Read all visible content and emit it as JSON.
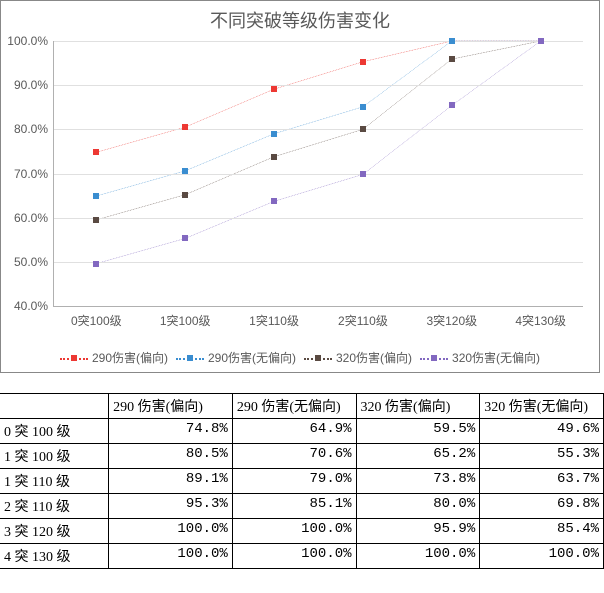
{
  "chart": {
    "type": "line",
    "title": "不同突破等级伤害变化",
    "title_fontsize": 18,
    "title_color": "#595959",
    "background_color": "#ffffff",
    "grid_color": "#e0e0e0",
    "axis_color": "#b0b0b0",
    "tick_font_color": "#595959",
    "tick_fontsize": 12,
    "ylim": [
      40,
      100
    ],
    "ytick_step": 10,
    "y_format": "percent1",
    "categories": [
      "0突100级",
      "1突100级",
      "1突110级",
      "2突110级",
      "3突120级",
      "4突130级"
    ],
    "marker_style": "square",
    "marker_size": 6,
    "line_dash": "1 4",
    "line_width": 1.6,
    "series": [
      {
        "name": "290伤害(偏向)",
        "color": "#ed3833",
        "values": [
          74.8,
          80.5,
          89.1,
          95.3,
          100.0,
          100.0
        ]
      },
      {
        "name": "290伤害(无偏向)",
        "color": "#3a8dd0",
        "values": [
          64.9,
          70.6,
          79.0,
          85.1,
          100.0,
          100.0
        ]
      },
      {
        "name": "320伤害(偏向)",
        "color": "#5a4a42",
        "values": [
          59.5,
          65.2,
          73.8,
          80.0,
          95.9,
          100.0
        ]
      },
      {
        "name": "320伤害(无偏向)",
        "color": "#8268c0",
        "values": [
          49.6,
          55.3,
          63.7,
          69.8,
          85.4,
          100.0
        ]
      }
    ],
    "legend_position": "bottom"
  },
  "table": {
    "columns": [
      "290 伤害(偏向)",
      "290 伤害(无偏向)",
      "320 伤害(偏向)",
      "320 伤害(无偏向)"
    ],
    "row_headers": [
      "0 突 100 级",
      "1 突 100 级",
      "1 突 110 级",
      "2 突 110 级",
      "3 突 120 级",
      "4 突 130 级"
    ],
    "rows": [
      [
        "74.8%",
        "64.9%",
        "59.5%",
        "49.6%"
      ],
      [
        "80.5%",
        "70.6%",
        "65.2%",
        "55.3%"
      ],
      [
        "89.1%",
        "79.0%",
        "73.8%",
        "63.7%"
      ],
      [
        "95.3%",
        "85.1%",
        "80.0%",
        "69.8%"
      ],
      [
        "100.0%",
        "100.0%",
        "95.9%",
        "85.4%"
      ],
      [
        "100.0%",
        "100.0%",
        "100.0%",
        "100.0%"
      ]
    ],
    "border_color": "#000000",
    "font_family": "SimSun",
    "col_widths_pct": [
      18,
      20.5,
      20.5,
      20.5,
      20.5
    ]
  }
}
